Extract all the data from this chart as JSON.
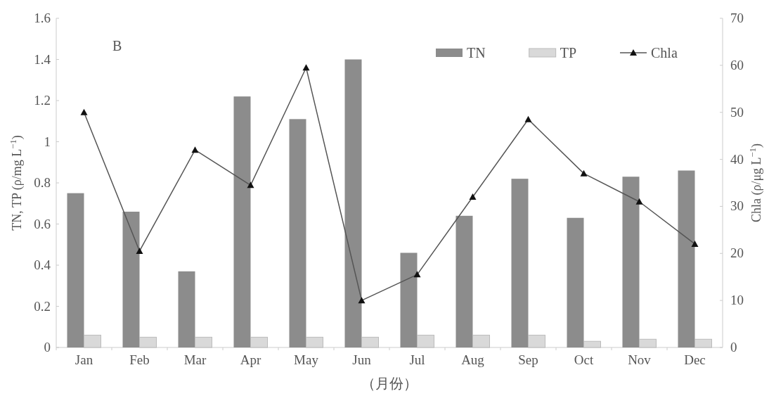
{
  "chart_data": {
    "type": "bar",
    "categories": [
      "Jan",
      "Feb",
      "Mar",
      "Apr",
      "May",
      "Jun",
      "Jul",
      "Aug",
      "Sep",
      "Oct",
      "Nov",
      "Dec"
    ],
    "xlabel": "（月份）",
    "ylabel": "TN, TP (ρ/mg L$^{−1}$)",
    "y2label": "Chla (ρ/μg L$^{−1}$)",
    "annotations": [
      "B"
    ],
    "series": [
      {
        "name": "TN",
        "color": "#8c8c8c",
        "values": [
          0.75,
          0.66,
          0.37,
          1.22,
          1.11,
          1.4,
          0.46,
          0.64,
          0.82,
          0.63,
          0.83,
          0.86
        ]
      },
      {
        "name": "TP",
        "color": "#d9d9d9",
        "values": [
          0.06,
          0.05,
          0.05,
          0.05,
          0.05,
          0.05,
          0.06,
          0.06,
          0.06,
          0.03,
          0.04,
          0.04
        ]
      },
      {
        "name": "Chla",
        "type": "line",
        "axis": "y2",
        "color": "#555555",
        "marker": "triangle",
        "values": [
          50,
          20.5,
          42,
          34.5,
          59.5,
          10,
          15.5,
          32,
          48.5,
          37,
          31,
          22
        ]
      }
    ],
    "ylim": [
      0,
      1.6
    ],
    "yticks": [
      0,
      0.2,
      0.4,
      0.6,
      0.8,
      1,
      1.2,
      1.4,
      1.6
    ],
    "y2lim": [
      0,
      70
    ],
    "y2ticks": [
      0,
      10,
      20,
      30,
      40,
      50,
      60,
      70
    ],
    "legend": "top right",
    "grid": false
  }
}
